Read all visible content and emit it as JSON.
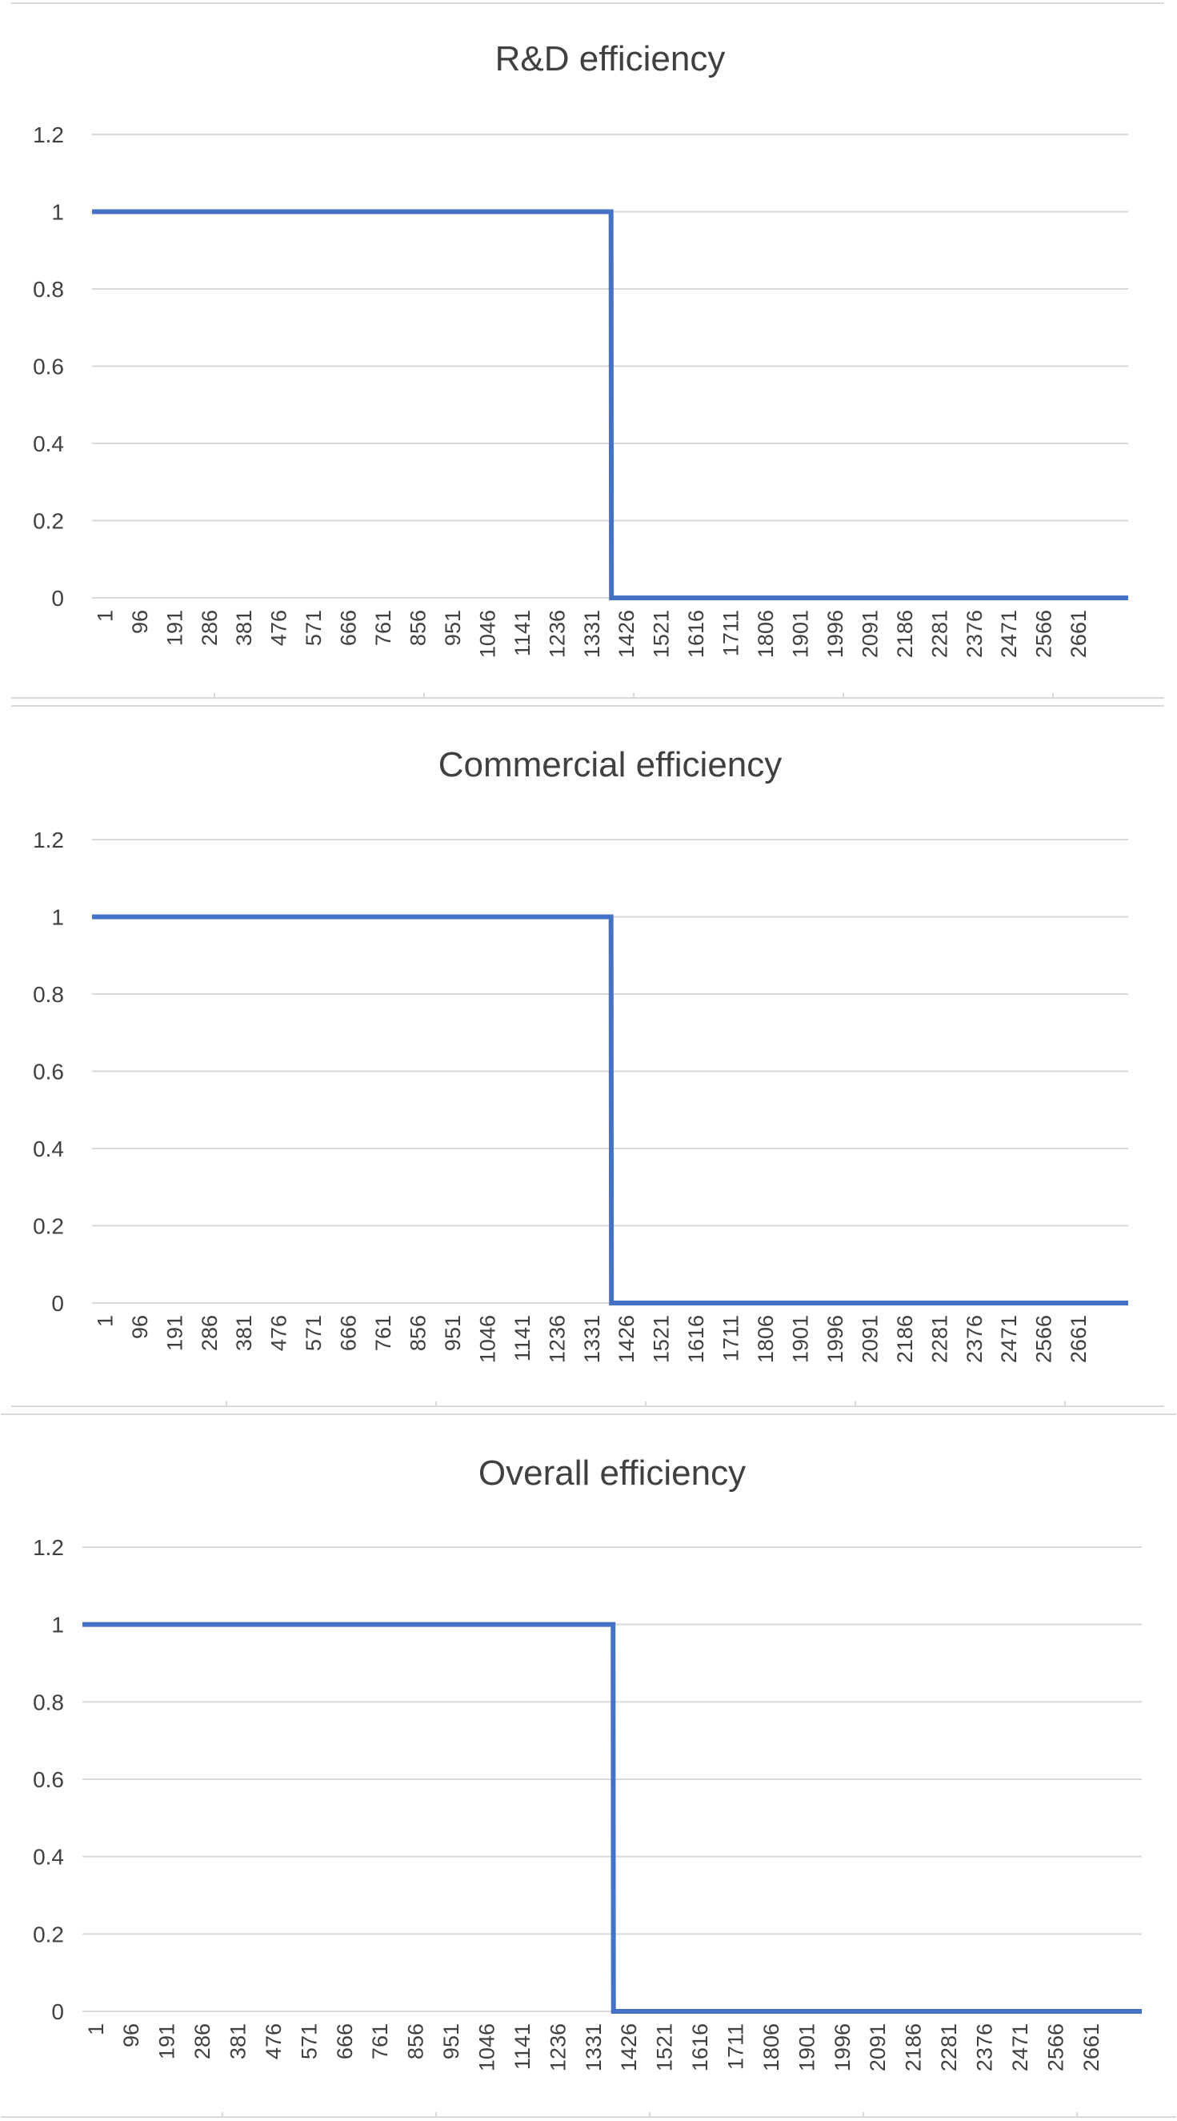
{
  "chart_data": [
    {
      "type": "line",
      "title": "R&D efficiency",
      "xlabel": "",
      "ylabel": "",
      "ylim": [
        0,
        1.2
      ],
      "yticks": [
        "0",
        "0.2",
        "0.4",
        "0.6",
        "0.8",
        "1",
        "1.2"
      ],
      "x_tick_labels": [
        "1",
        "96",
        "191",
        "286",
        "381",
        "476",
        "571",
        "666",
        "761",
        "856",
        "951",
        "1046",
        "1141",
        "1236",
        "1331",
        "1426",
        "1521",
        "1616",
        "1711",
        "1806",
        "1901",
        "1996",
        "2091",
        "2186",
        "2281",
        "2376",
        "2471",
        "2566",
        "2661"
      ],
      "xlim": [
        1,
        2736
      ],
      "grid": true,
      "color": "#4472c4",
      "series": [
        {
          "x": [
            1,
            1371,
            1372,
            2736
          ],
          "y": [
            1,
            1,
            0,
            0
          ]
        }
      ]
    },
    {
      "type": "line",
      "title": "Commercial efficiency",
      "xlabel": "",
      "ylabel": "",
      "ylim": [
        0,
        1.2
      ],
      "yticks": [
        "0",
        "0.2",
        "0.4",
        "0.6",
        "0.8",
        "1",
        "1.2"
      ],
      "x_tick_labels": [
        "1",
        "96",
        "191",
        "286",
        "381",
        "476",
        "571",
        "666",
        "761",
        "856",
        "951",
        "1046",
        "1141",
        "1236",
        "1331",
        "1426",
        "1521",
        "1616",
        "1711",
        "1806",
        "1901",
        "1996",
        "2091",
        "2186",
        "2281",
        "2376",
        "2471",
        "2566",
        "2661"
      ],
      "xlim": [
        1,
        2736
      ],
      "grid": true,
      "color": "#4472c4",
      "series": [
        {
          "x": [
            1,
            1371,
            1372,
            2736
          ],
          "y": [
            1,
            1,
            0,
            0
          ]
        }
      ]
    },
    {
      "type": "line",
      "title": "Overall efficiency",
      "xlabel": "",
      "ylabel": "",
      "ylim": [
        0,
        1.2
      ],
      "yticks": [
        "0",
        "0.2",
        "0.4",
        "0.6",
        "0.8",
        "1",
        "1.2"
      ],
      "x_tick_labels": [
        "1",
        "96",
        "191",
        "286",
        "381",
        "476",
        "571",
        "666",
        "761",
        "856",
        "951",
        "1046",
        "1141",
        "1236",
        "1331",
        "1426",
        "1521",
        "1616",
        "1711",
        "1806",
        "1901",
        "1996",
        "2091",
        "2186",
        "2281",
        "2376",
        "2471",
        "2566",
        "2661"
      ],
      "xlim": [
        1,
        2736
      ],
      "grid": true,
      "color": "#4472c4",
      "series": [
        {
          "x": [
            1,
            1371,
            1372,
            2736
          ],
          "y": [
            1,
            1,
            0,
            0
          ]
        }
      ]
    }
  ]
}
